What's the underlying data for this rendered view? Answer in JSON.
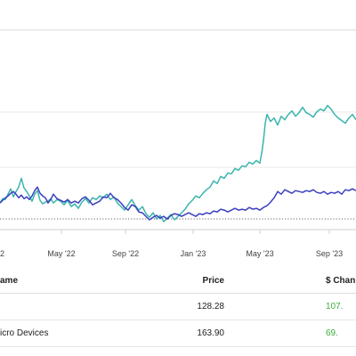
{
  "table": {
    "headers": {
      "name": "ame",
      "price": "Price",
      "change": "$ Chan"
    },
    "rows": [
      {
        "name": "",
        "price": "128.28",
        "change": "107."
      },
      {
        "name": "icro Devices",
        "price": "163.90",
        "change": "69."
      }
    ]
  },
  "colors": {
    "series_teal": "#3ab5ad",
    "series_indigo": "#3b3fbf",
    "positive": "#3fae3f"
  },
  "chart_data": {
    "type": "line",
    "x_ticks": [
      "2",
      "May '22",
      "Sep '22",
      "Jan '23",
      "May '23",
      "Sep '23"
    ],
    "grid": true,
    "baseline": "dotted",
    "series": [
      {
        "color": "#3ab5ad",
        "points": [
          [
            0,
            30
          ],
          [
            3,
            35
          ],
          [
            6,
            34
          ],
          [
            9,
            40
          ],
          [
            12,
            46
          ],
          [
            15,
            37
          ],
          [
            18,
            43
          ],
          [
            21,
            48
          ],
          [
            24,
            58
          ],
          [
            27,
            47
          ],
          [
            30,
            43
          ],
          [
            33,
            38
          ],
          [
            36,
            32
          ],
          [
            39,
            40
          ],
          [
            42,
            44
          ],
          [
            45,
            33
          ],
          [
            48,
            29
          ],
          [
            51,
            31
          ],
          [
            54,
            32
          ],
          [
            57,
            35
          ],
          [
            60,
            30
          ],
          [
            64,
            34
          ],
          [
            68,
            32
          ],
          [
            72,
            28
          ],
          [
            76,
            33
          ],
          [
            80,
            26
          ],
          [
            84,
            29
          ],
          [
            88,
            24
          ],
          [
            92,
            31
          ],
          [
            96,
            35
          ],
          [
            100,
            30
          ],
          [
            104,
            36
          ],
          [
            108,
            34
          ],
          [
            112,
            38
          ],
          [
            116,
            36
          ],
          [
            120,
            40
          ],
          [
            124,
            34
          ],
          [
            128,
            37
          ],
          [
            132,
            30
          ],
          [
            136,
            26
          ],
          [
            140,
            22
          ],
          [
            144,
            28
          ],
          [
            148,
            34
          ],
          [
            152,
            27
          ],
          [
            156,
            22
          ],
          [
            160,
            26
          ],
          [
            164,
            18
          ],
          [
            168,
            14
          ],
          [
            172,
            19
          ],
          [
            176,
            12
          ],
          [
            180,
            16
          ],
          [
            184,
            9
          ],
          [
            188,
            13
          ],
          [
            192,
            17
          ],
          [
            196,
            11
          ],
          [
            200,
            15
          ],
          [
            204,
            19
          ],
          [
            208,
            23
          ],
          [
            212,
            29
          ],
          [
            216,
            33
          ],
          [
            220,
            38
          ],
          [
            224,
            36
          ],
          [
            228,
            41
          ],
          [
            232,
            45
          ],
          [
            236,
            48
          ],
          [
            240,
            55
          ],
          [
            244,
            52
          ],
          [
            248,
            60
          ],
          [
            252,
            58
          ],
          [
            256,
            64
          ],
          [
            260,
            63
          ],
          [
            264,
            69
          ],
          [
            268,
            67
          ],
          [
            272,
            72
          ],
          [
            276,
            71
          ],
          [
            280,
            76
          ],
          [
            284,
            74
          ],
          [
            288,
            78
          ],
          [
            292,
            75
          ],
          [
            294,
            86
          ],
          [
            296,
            100
          ],
          [
            298,
            120
          ],
          [
            300,
            130
          ],
          [
            304,
            122
          ],
          [
            308,
            126
          ],
          [
            312,
            118
          ],
          [
            316,
            128
          ],
          [
            320,
            124
          ],
          [
            324,
            130
          ],
          [
            328,
            134
          ],
          [
            332,
            128
          ],
          [
            336,
            132
          ],
          [
            340,
            138
          ],
          [
            344,
            132
          ],
          [
            348,
            130
          ],
          [
            352,
            127
          ],
          [
            356,
            133
          ],
          [
            360,
            136
          ],
          [
            364,
            134
          ],
          [
            368,
            140
          ],
          [
            372,
            136
          ],
          [
            376,
            130
          ],
          [
            380,
            126
          ],
          [
            384,
            123
          ],
          [
            388,
            120
          ],
          [
            392,
            126
          ],
          [
            396,
            130
          ],
          [
            400,
            124
          ]
        ]
      },
      {
        "color": "#3b3fbf",
        "points": [
          [
            0,
            30
          ],
          [
            3,
            33
          ],
          [
            6,
            36
          ],
          [
            9,
            38
          ],
          [
            12,
            41
          ],
          [
            15,
            43
          ],
          [
            18,
            40
          ],
          [
            21,
            36
          ],
          [
            24,
            39
          ],
          [
            27,
            35
          ],
          [
            30,
            37
          ],
          [
            33,
            34
          ],
          [
            36,
            38
          ],
          [
            39,
            44
          ],
          [
            42,
            48
          ],
          [
            45,
            41
          ],
          [
            48,
            38
          ],
          [
            51,
            36
          ],
          [
            54,
            30
          ],
          [
            57,
            34
          ],
          [
            60,
            40
          ],
          [
            64,
            35
          ],
          [
            68,
            33
          ],
          [
            72,
            31
          ],
          [
            76,
            34
          ],
          [
            80,
            30
          ],
          [
            84,
            32
          ],
          [
            88,
            30
          ],
          [
            92,
            35
          ],
          [
            96,
            37
          ],
          [
            100,
            33
          ],
          [
            104,
            28
          ],
          [
            108,
            30
          ],
          [
            112,
            32
          ],
          [
            116,
            37
          ],
          [
            120,
            36
          ],
          [
            124,
            41
          ],
          [
            128,
            36
          ],
          [
            132,
            34
          ],
          [
            136,
            30
          ],
          [
            140,
            25
          ],
          [
            144,
            22
          ],
          [
            148,
            28
          ],
          [
            152,
            26
          ],
          [
            156,
            20
          ],
          [
            160,
            19
          ],
          [
            164,
            15
          ],
          [
            168,
            11
          ],
          [
            172,
            14
          ],
          [
            176,
            16
          ],
          [
            180,
            13
          ],
          [
            184,
            15
          ],
          [
            188,
            12
          ],
          [
            192,
            16
          ],
          [
            196,
            18
          ],
          [
            200,
            17
          ],
          [
            204,
            15
          ],
          [
            208,
            17
          ],
          [
            212,
            19
          ],
          [
            216,
            17
          ],
          [
            220,
            15
          ],
          [
            224,
            18
          ],
          [
            228,
            17
          ],
          [
            232,
            19
          ],
          [
            236,
            18
          ],
          [
            240,
            21
          ],
          [
            244,
            20
          ],
          [
            248,
            23
          ],
          [
            252,
            22
          ],
          [
            256,
            20
          ],
          [
            260,
            22
          ],
          [
            264,
            24
          ],
          [
            268,
            22
          ],
          [
            272,
            23
          ],
          [
            276,
            22
          ],
          [
            280,
            25
          ],
          [
            284,
            23
          ],
          [
            288,
            24
          ],
          [
            292,
            22
          ],
          [
            296,
            25
          ],
          [
            300,
            27
          ],
          [
            304,
            31
          ],
          [
            308,
            36
          ],
          [
            312,
            43
          ],
          [
            316,
            40
          ],
          [
            320,
            45
          ],
          [
            324,
            43
          ],
          [
            328,
            41
          ],
          [
            332,
            44
          ],
          [
            336,
            43
          ],
          [
            340,
            42
          ],
          [
            344,
            44
          ],
          [
            348,
            43
          ],
          [
            352,
            45
          ],
          [
            356,
            42
          ],
          [
            360,
            41
          ],
          [
            364,
            43
          ],
          [
            368,
            40
          ],
          [
            372,
            42
          ],
          [
            376,
            41
          ],
          [
            380,
            43
          ],
          [
            384,
            40
          ],
          [
            388,
            45
          ],
          [
            392,
            44
          ],
          [
            396,
            46
          ],
          [
            400,
            44
          ]
        ]
      }
    ]
  }
}
